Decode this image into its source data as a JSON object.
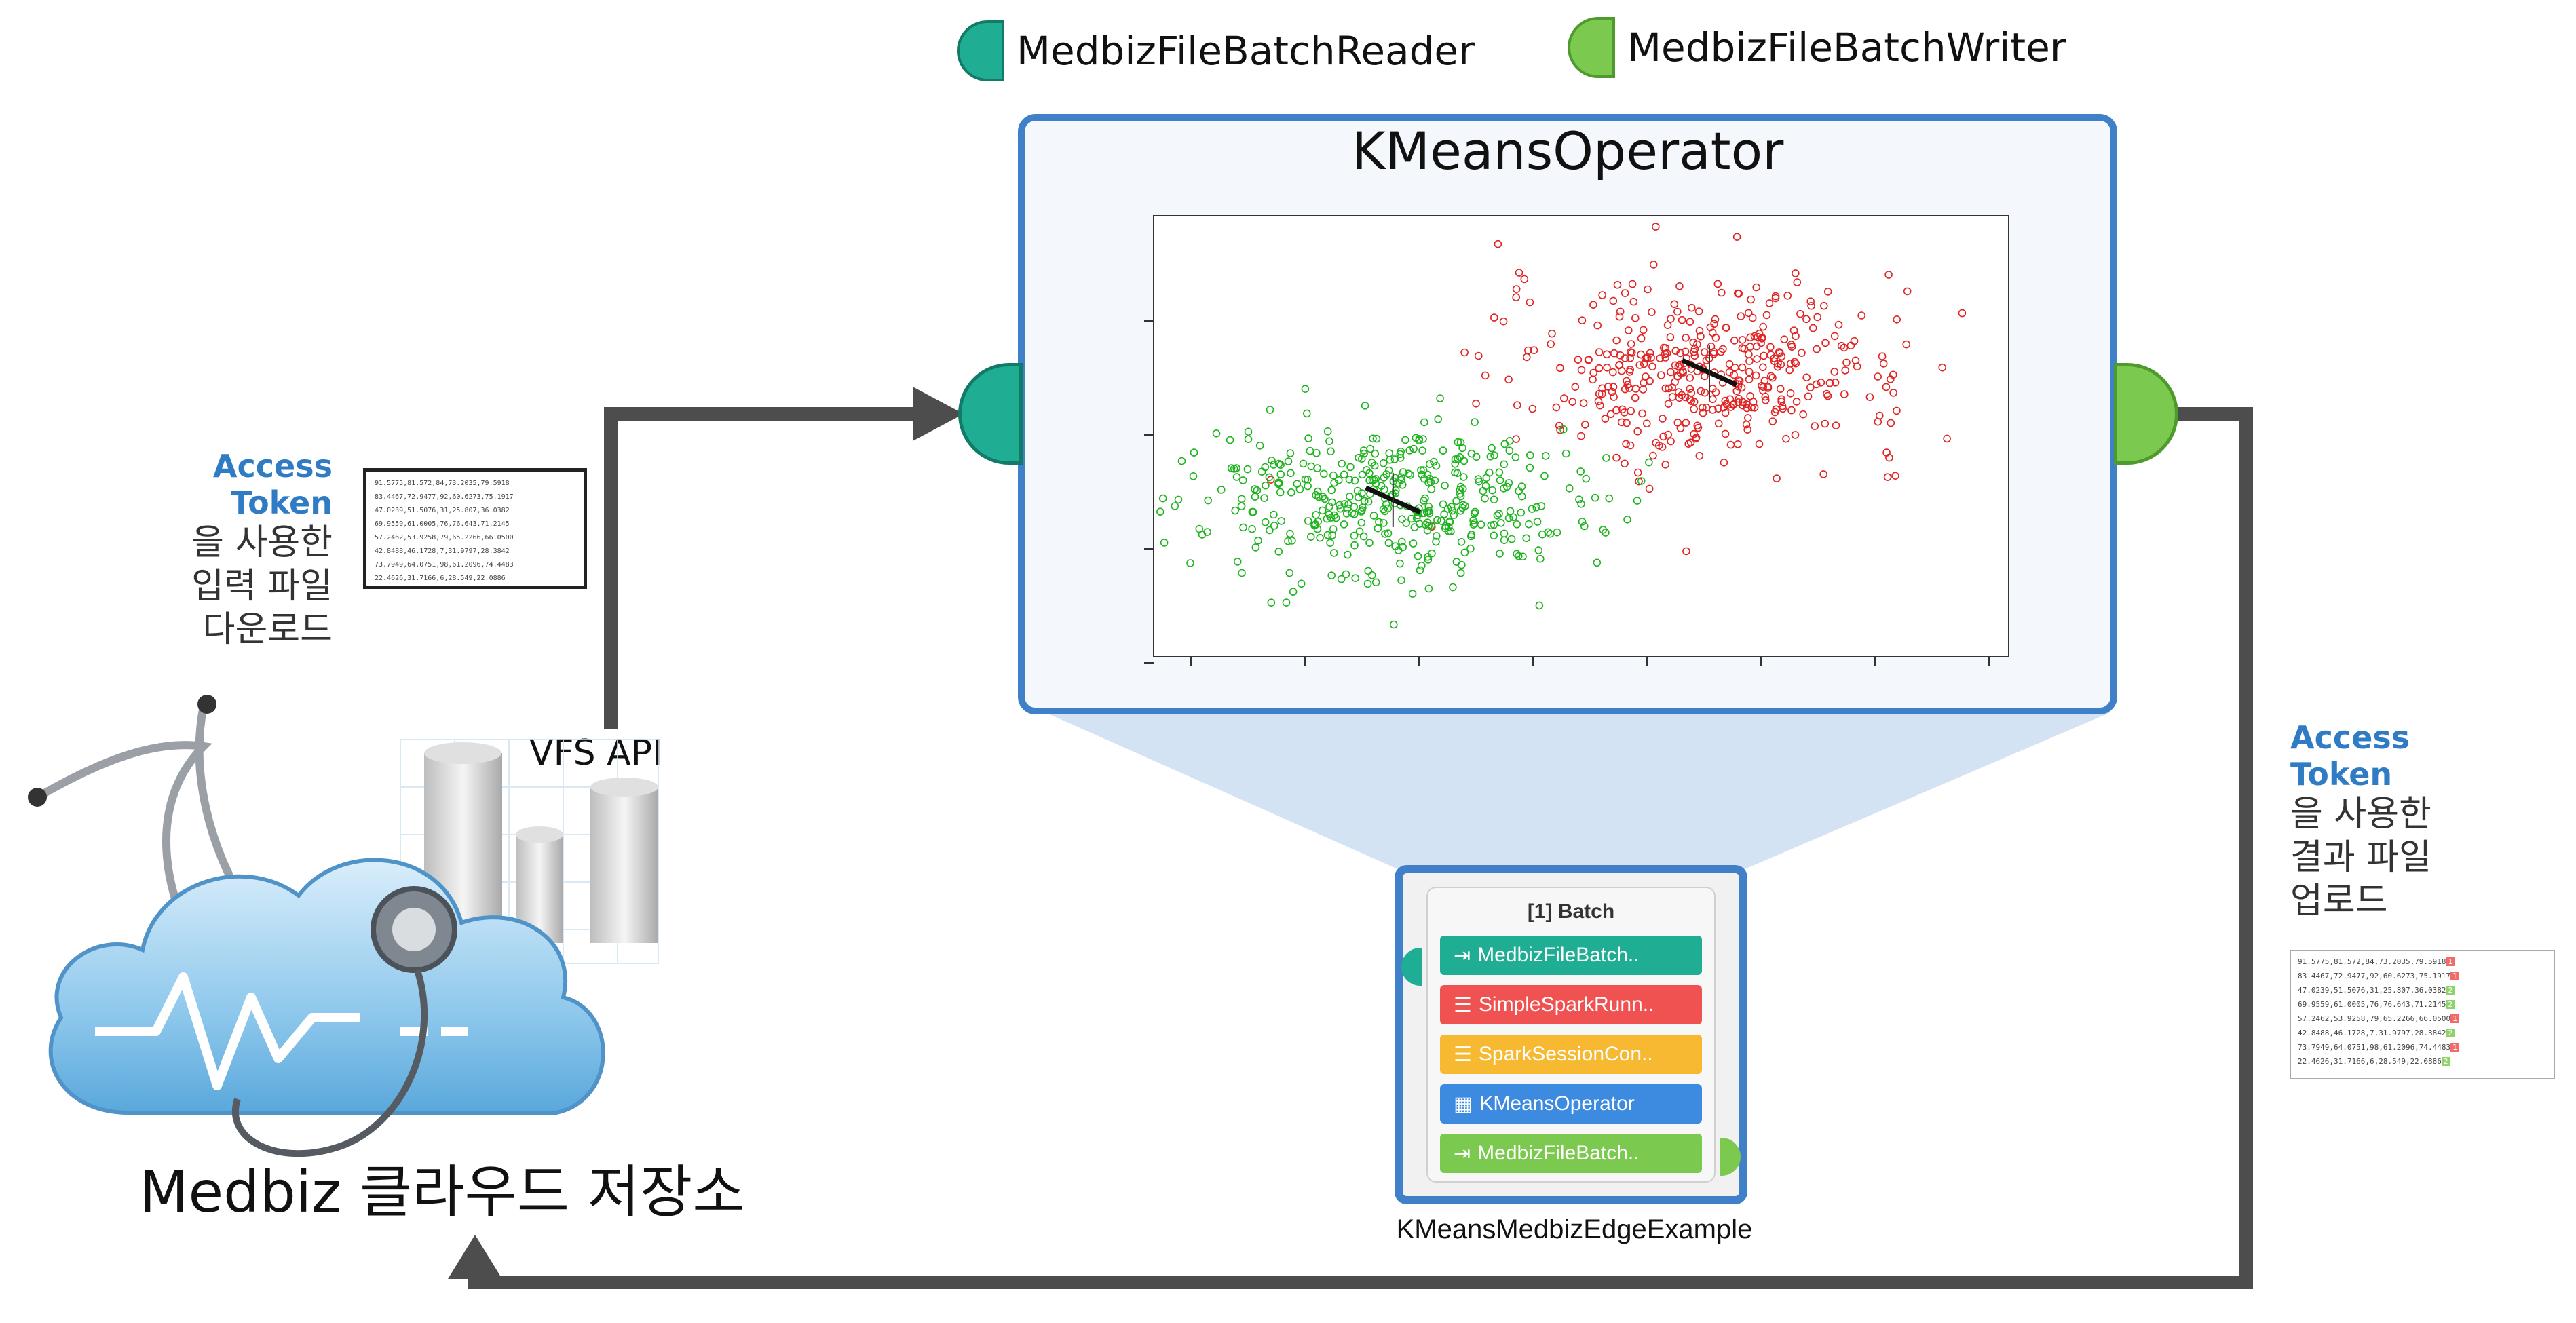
{
  "legend": {
    "reader": {
      "label": "MedbizFileBatchReader",
      "color": "#1fae94"
    },
    "writer": {
      "label": "MedbizFileBatchWriter",
      "color": "#7cc94f"
    }
  },
  "operator": {
    "title": "KMeansOperator"
  },
  "chart_data": {
    "type": "scatter",
    "title": "",
    "xlabel": "",
    "ylabel": "",
    "grid": false,
    "series": [
      {
        "color": "#e02424",
        "center": [
          65,
          68
        ],
        "spread": [
          12,
          9
        ],
        "count": 420
      },
      {
        "color": "#1fb31f",
        "center": [
          28,
          42
        ],
        "spread": [
          11,
          8
        ],
        "count": 420
      }
    ],
    "cluster_centers": [
      [
        65,
        68
      ],
      [
        28,
        42
      ]
    ]
  },
  "left_note": {
    "highlight": "Access Token",
    "lines": [
      "을 사용한",
      "입력 파일",
      "다운로드"
    ]
  },
  "right_note": {
    "highlight": "Access Token",
    "lines": [
      "을 사용한",
      "결과 파일",
      "업로드"
    ]
  },
  "input_file_lines": [
    "91.5775,81.572,84,73.2035,79.5918",
    "83.4467,72.9477,92,60.6273,75.1917",
    "47.0239,51.5076,31,25.807,36.0382",
    "69.9559,61.0005,76,76.643,71.2145",
    "57.2462,53.9258,79,65.2266,66.0500",
    "42.8488,46.1728,7,31.9797,28.3842",
    "73.7949,64.0751,98,61.2096,74.4483",
    "22.4626,31.7166,6,28.549,22.0886"
  ],
  "output_file_lines": [
    {
      "text": "91.5775,81.572,84,73.2035,79.5918",
      "cluster": "1"
    },
    {
      "text": "83.4467,72.9477,92,60.6273,75.1917",
      "cluster": "1"
    },
    {
      "text": "47.0239,51.5076,31,25.807,36.0382",
      "cluster": "2"
    },
    {
      "text": "69.9559,61.0005,76,76.643,71.2145",
      "cluster": "2"
    },
    {
      "text": "57.2462,53.9258,79,65.2266,66.0500",
      "cluster": "1"
    },
    {
      "text": "42.8488,46.1728,7,31.9797,28.3842",
      "cluster": "2"
    },
    {
      "text": "73.7949,64.0751,98,61.2096,74.4483",
      "cluster": "1"
    },
    {
      "text": "22.4626,31.7166,6,28.549,22.0886",
      "cluster": "2"
    }
  ],
  "vfs_label": "VFS API",
  "storage_label": "Medbiz 클라우드 저장소",
  "batch": {
    "header": "[1] Batch",
    "stages": [
      {
        "label": "MedbizFileBatch..",
        "color": "#1fae94",
        "icon": "reader-icon"
      },
      {
        "label": "SimpleSparkRunn..",
        "color": "#f05252",
        "icon": "runner-icon"
      },
      {
        "label": "SparkSessionCon..",
        "color": "#f6b931",
        "icon": "session-icon"
      },
      {
        "label": "KMeansOperator",
        "color": "#3d8be0",
        "icon": "operator-icon"
      },
      {
        "label": "MedbizFileBatch..",
        "color": "#7cc94f",
        "icon": "writer-icon"
      }
    ],
    "caption": "KMeansMedbizEdgeExample"
  }
}
